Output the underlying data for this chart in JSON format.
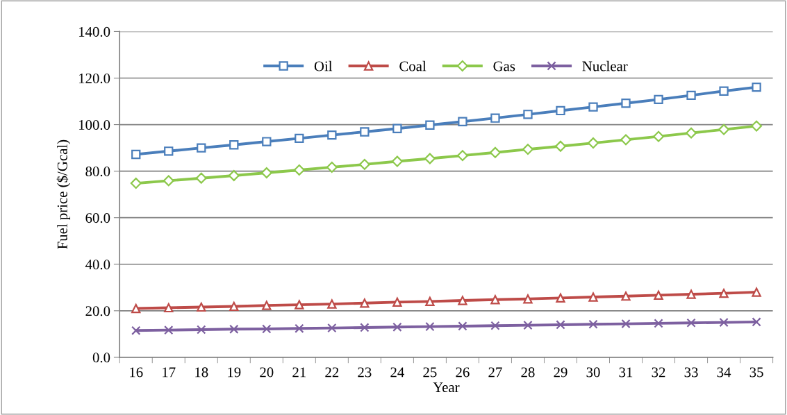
{
  "chart_data": {
    "type": "line",
    "xlabel": "Year",
    "ylabel": "Fuel price ($/Gcal)",
    "categories": [
      "16",
      "17",
      "18",
      "19",
      "20",
      "21",
      "22",
      "23",
      "24",
      "25",
      "26",
      "27",
      "28",
      "29",
      "30",
      "31",
      "32",
      "33",
      "34",
      "35"
    ],
    "ylim": [
      0,
      140
    ],
    "yticks": [
      {
        "value": 0,
        "label": "0.0"
      },
      {
        "value": 20,
        "label": "20.0"
      },
      {
        "value": 40,
        "label": "40.0"
      },
      {
        "value": 60,
        "label": "60.0"
      },
      {
        "value": 80,
        "label": "80.0"
      },
      {
        "value": 100,
        "label": "100.0"
      },
      {
        "value": 120,
        "label": "120.0"
      },
      {
        "value": 140,
        "label": "140.0"
      }
    ],
    "grid": "y",
    "legend": "top",
    "line_style": "solid",
    "series": [
      {
        "name": "Oil",
        "color": "#4a7ebb",
        "marker": "square",
        "values": [
          87.2,
          88.6,
          90.0,
          91.3,
          92.7,
          94.1,
          95.5,
          96.9,
          98.3,
          99.8,
          101.3,
          102.8,
          104.4,
          106.0,
          107.6,
          109.2,
          110.8,
          112.6,
          114.4,
          116.1
        ]
      },
      {
        "name": "Coal",
        "color": "#be4b48",
        "marker": "triangle",
        "values": [
          21.0,
          21.3,
          21.6,
          21.9,
          22.3,
          22.6,
          22.9,
          23.3,
          23.7,
          24.0,
          24.4,
          24.8,
          25.1,
          25.5,
          25.9,
          26.3,
          26.7,
          27.1,
          27.5,
          28.0
        ]
      },
      {
        "name": "Gas",
        "color": "#8cc84b",
        "marker": "diamond",
        "values": [
          74.8,
          75.9,
          77.0,
          78.1,
          79.3,
          80.5,
          81.7,
          82.9,
          84.2,
          85.4,
          86.7,
          88.0,
          89.4,
          90.7,
          92.1,
          93.5,
          94.9,
          96.4,
          97.9,
          99.4
        ]
      },
      {
        "name": "Nuclear",
        "color": "#7d60a0",
        "marker": "cross",
        "values": [
          11.5,
          11.7,
          11.9,
          12.1,
          12.2,
          12.4,
          12.6,
          12.8,
          13.0,
          13.2,
          13.4,
          13.6,
          13.8,
          14.0,
          14.2,
          14.4,
          14.6,
          14.8,
          15.0,
          15.2
        ]
      }
    ]
  }
}
